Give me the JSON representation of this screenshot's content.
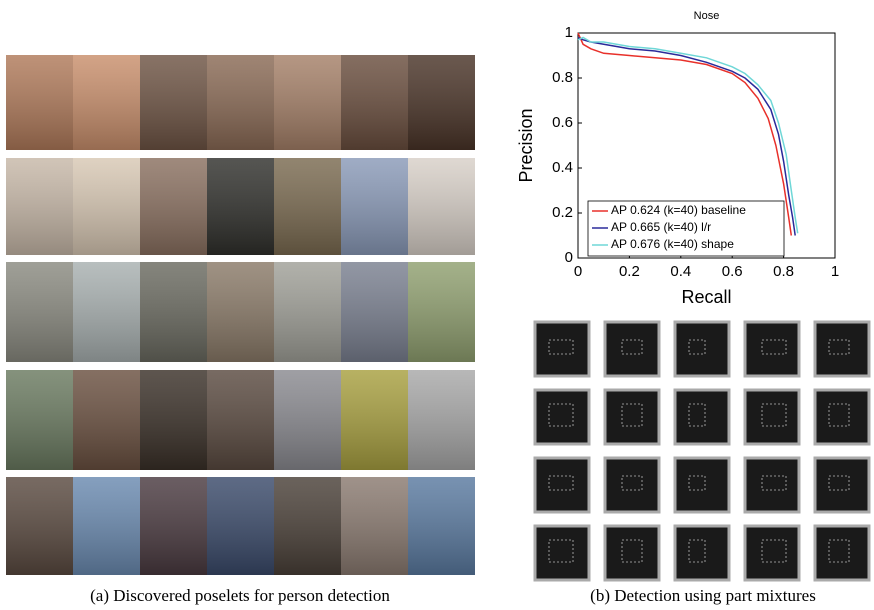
{
  "chart_data": {
    "type": "line",
    "title": "Nose",
    "x_label": "Recall",
    "y_label": "Precision",
    "xlim": [
      0,
      1
    ],
    "ylim": [
      0,
      1
    ],
    "xticks": [
      0,
      0.2,
      0.4,
      0.6,
      0.8,
      1
    ],
    "yticks": [
      0,
      0.2,
      0.4,
      0.6,
      0.8,
      1
    ],
    "legend": "lower-left",
    "series": [
      {
        "name": "AP 0.624 (k=40) baseline",
        "color": "#e8302a",
        "x": [
          0,
          0.02,
          0.05,
          0.1,
          0.2,
          0.3,
          0.4,
          0.5,
          0.6,
          0.65,
          0.7,
          0.74,
          0.77,
          0.8,
          0.82,
          0.83
        ],
        "values": [
          1,
          0.95,
          0.93,
          0.91,
          0.9,
          0.89,
          0.88,
          0.86,
          0.82,
          0.78,
          0.71,
          0.62,
          0.5,
          0.33,
          0.18,
          0.1
        ]
      },
      {
        "name": "AP 0.665 (k=40) l/r",
        "color": "#2a2a9a",
        "x": [
          0,
          0.02,
          0.05,
          0.1,
          0.2,
          0.3,
          0.4,
          0.5,
          0.6,
          0.65,
          0.7,
          0.75,
          0.78,
          0.8,
          0.82,
          0.835,
          0.845
        ],
        "values": [
          0.98,
          0.97,
          0.96,
          0.95,
          0.93,
          0.92,
          0.9,
          0.87,
          0.83,
          0.8,
          0.75,
          0.66,
          0.55,
          0.43,
          0.28,
          0.18,
          0.1
        ]
      },
      {
        "name": "AP 0.676 (k=40) shape",
        "color": "#6fd7d7",
        "x": [
          0,
          0.02,
          0.05,
          0.1,
          0.2,
          0.3,
          0.4,
          0.5,
          0.6,
          0.65,
          0.7,
          0.75,
          0.78,
          0.81,
          0.83,
          0.845,
          0.855
        ],
        "values": [
          0.97,
          0.98,
          0.96,
          0.96,
          0.94,
          0.93,
          0.91,
          0.89,
          0.85,
          0.82,
          0.77,
          0.7,
          0.6,
          0.46,
          0.3,
          0.18,
          0.11
        ]
      }
    ]
  },
  "figure": {
    "caption_a": "(a) Discovered poselets for person detection",
    "caption_b": "(b) Detection using part mixtures"
  }
}
